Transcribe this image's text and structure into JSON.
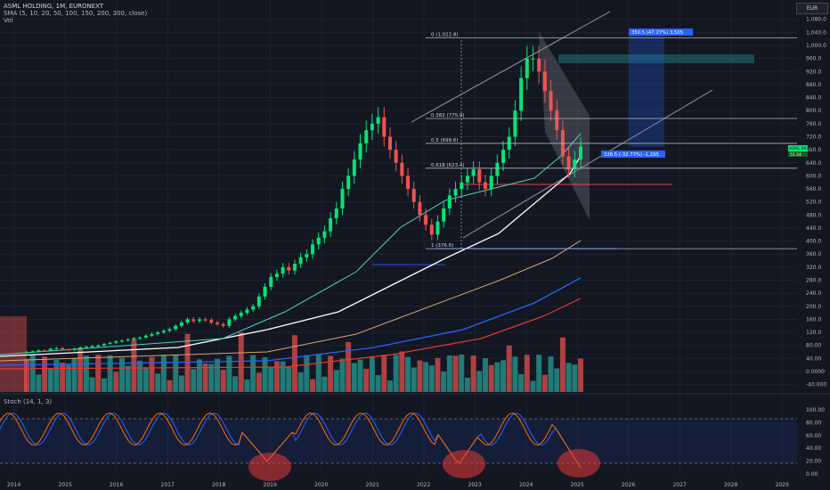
{
  "header": {
    "title": "ASML HOLDING, 1M, EURONEXT",
    "indicator": "SMA (5, 10, 20, 50, 100, 150, 200, 300, close)",
    "volume_label": "Vol"
  },
  "currency": "EUR",
  "stoch_label": "Stoch (14, 1, 3)",
  "colors": {
    "background": "#131722",
    "bull": "#26a69a",
    "bull_bright": "#00e676",
    "bear": "#ef5350",
    "grid": "#1e222d",
    "sma_cyan": "#4dd0c4",
    "sma_white": "#ffffff",
    "sma_tan": "#d4a373",
    "sma_blue": "#2962ff",
    "sma_red": "#e53935",
    "stoch_k": "#2962ff",
    "stoch_d": "#ff6d00"
  },
  "chart_data": {
    "type": "line",
    "x_axis": {
      "labels": [
        "2014",
        "2015",
        "2016",
        "2017",
        "2018",
        "2019",
        "2020",
        "2021",
        "2022",
        "2023",
        "2024",
        "2025",
        "2026",
        "2027",
        "2028",
        "2029"
      ]
    },
    "price_axis": {
      "ticks": [
        "1,080.0",
        "1,040.0",
        "1,000.0",
        "960.0",
        "920.0",
        "880.0",
        "840.0",
        "800.0",
        "760.0",
        "720.0",
        "680.0",
        "640.0",
        "600.0",
        "560.0",
        "520.0",
        "480.0",
        "440.0",
        "400.0",
        "360.0",
        "320.0",
        "280.0",
        "240.0",
        "200.0",
        "160.0",
        "120.0",
        "80.00",
        "40.00",
        "0.0000",
        "-40.000"
      ]
    },
    "stoch_axis": {
      "ticks": [
        "100.00",
        "80.00",
        "60.00",
        "40.00",
        "20.00",
        "0.00"
      ]
    },
    "fib_levels": [
      {
        "label": "0 (1,022.8)",
        "price": 1022.8
      },
      {
        "label": "0.382 (775.9)",
        "price": 775.9
      },
      {
        "label": "0.5 (699.6)",
        "price": 699.6
      },
      {
        "label": "0.618 (623.4)",
        "price": 623.4
      },
      {
        "label": "1 (376.8)",
        "price": 376.8
      }
    ],
    "measure_labels": [
      "350.5 (47.27%) 3,505",
      "326.5 (-32.77%) -1,295"
    ],
    "price_badges": [
      "ASML 691.4",
      "51 24"
    ],
    "series_monthly_close": [
      60,
      62,
      65,
      64,
      70,
      72,
      68,
      66,
      70,
      74,
      76,
      78,
      80,
      85,
      88,
      92,
      95,
      98,
      102,
      104,
      110,
      115,
      120,
      125,
      130,
      140,
      150,
      160,
      155,
      160,
      158,
      150,
      145,
      140,
      160,
      170,
      180,
      190,
      200,
      230,
      260,
      290,
      300,
      320,
      310,
      330,
      350,
      360,
      390,
      410,
      430,
      470,
      500,
      560,
      600,
      650,
      700,
      740,
      760,
      780,
      720,
      680,
      640,
      600,
      560,
      520,
      480,
      450,
      420,
      460,
      500,
      540,
      560,
      580,
      600,
      620,
      580,
      560,
      600,
      640,
      680,
      720,
      800,
      900,
      960,
      960,
      920,
      860,
      800,
      740,
      660,
      620,
      650,
      690
    ]
  }
}
